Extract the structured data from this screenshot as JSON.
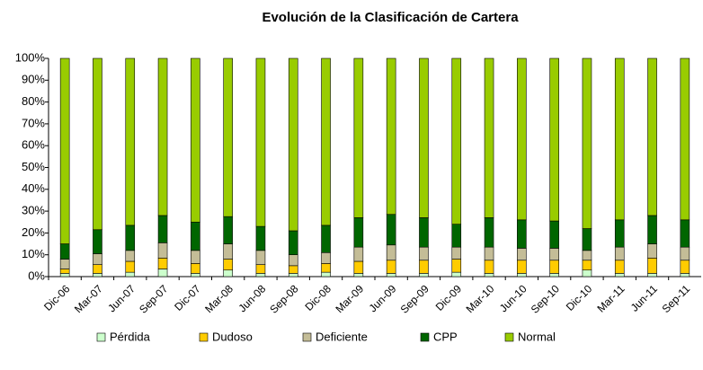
{
  "chart_data": {
    "type": "stacked_bar",
    "title": "Evolución de la Clasificación de Cartera",
    "categories": [
      "Dic-06",
      "Mar-07",
      "Jun-07",
      "Sep-07",
      "Dic-07",
      "Mar-08",
      "Jun-08",
      "Sep-08",
      "Dic-08",
      "Mar-09",
      "Jun-09",
      "Sep-09",
      "Dic-09",
      "Mar-10",
      "Jun-10",
      "Sep-10",
      "Dic-10",
      "Mar-11",
      "Jun-11",
      "Sep-11"
    ],
    "series": [
      {
        "name": "Pérdida",
        "color": "#ccffcc",
        "values": [
          1.5,
          1.5,
          2,
          3.5,
          1.5,
          3,
          1.5,
          1.5,
          2,
          1.5,
          1.5,
          1.5,
          2,
          1.5,
          1.5,
          1.5,
          3,
          1.5,
          1.5,
          1.5
        ]
      },
      {
        "name": "Dudoso",
        "color": "#ffcc00",
        "values": [
          2,
          4,
          5,
          5,
          4.5,
          5,
          4,
          3.5,
          4,
          5.5,
          6,
          6,
          6,
          6,
          6,
          6,
          4.5,
          6,
          7,
          6
        ]
      },
      {
        "name": "Deficiente",
        "color": "#c4bd97",
        "values": [
          4.5,
          5,
          5,
          7,
          6,
          7,
          6.5,
          5,
          5,
          6.5,
          7,
          6,
          5.5,
          6,
          5.5,
          5.5,
          4.5,
          6,
          6.5,
          6
        ]
      },
      {
        "name": "CPP",
        "color": "#006600",
        "values": [
          7,
          11,
          11.5,
          12.5,
          13,
          12.5,
          11,
          11,
          12.5,
          13.5,
          14,
          13.5,
          10.5,
          13.5,
          13,
          12.5,
          10,
          12.5,
          13,
          12.5
        ]
      },
      {
        "name": "Normal",
        "color": "#99cc00",
        "values": [
          85,
          78.5,
          76.5,
          72,
          75,
          72.5,
          77,
          79,
          76.5,
          73,
          71.5,
          73,
          76,
          73,
          74,
          74.5,
          78,
          74,
          72,
          74
        ]
      }
    ],
    "ylim": [
      0,
      100
    ],
    "yticks": [
      {
        "value": 0,
        "label": "0%"
      },
      {
        "value": 10,
        "label": "10%"
      },
      {
        "value": 20,
        "label": "20%"
      },
      {
        "value": 30,
        "label": "30%"
      },
      {
        "value": 40,
        "label": "40%"
      },
      {
        "value": 50,
        "label": "50%"
      },
      {
        "value": 60,
        "label": "60%"
      },
      {
        "value": 70,
        "label": "70%"
      },
      {
        "value": 80,
        "label": "80%"
      },
      {
        "value": 90,
        "label": "90%"
      },
      {
        "value": 100,
        "label": "100%"
      }
    ],
    "legend": "bottom"
  }
}
